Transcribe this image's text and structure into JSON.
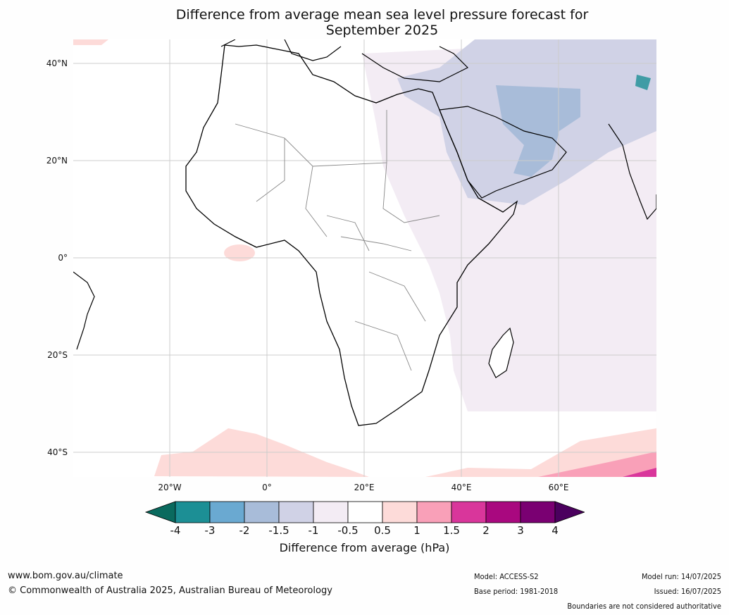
{
  "title_line1": "Difference from average mean sea level pressure forecast for",
  "title_line2": "September 2025",
  "lat_labels": [
    "40°N",
    "20°N",
    "0°",
    "20°S",
    "40°S"
  ],
  "lon_labels": [
    "20°W",
    "0°",
    "20°E",
    "40°E",
    "60°E"
  ],
  "colorbar": {
    "ticks": [
      "-4",
      "-3",
      "-2",
      "-1.5",
      "-1",
      "-0.5",
      "0.5",
      "1",
      "1.5",
      "2",
      "3",
      "4"
    ],
    "colors": [
      "#0a6a5e",
      "#1c8f95",
      "#6aa9d1",
      "#a8bcd9",
      "#d0d2e6",
      "#f3ecf4",
      "#ffffff",
      "#fddbd9",
      "#f9a0b8",
      "#d9369b",
      "#a9087f",
      "#7a0072",
      "#4b005e"
    ],
    "label": "Difference from average (hPa)"
  },
  "footer": {
    "url": "www.bom.gov.au/climate",
    "copyright": "© Commonwealth of Australia 2025, Australian Bureau of Meteorology",
    "model": "Model: ACCESS-S2",
    "base_period": "Base period: 1981-2018",
    "model_run": "Model run: 14/07/2025",
    "issued": "Issued: 16/07/2025",
    "disclaimer": "Boundaries are not considered authoritative"
  }
}
